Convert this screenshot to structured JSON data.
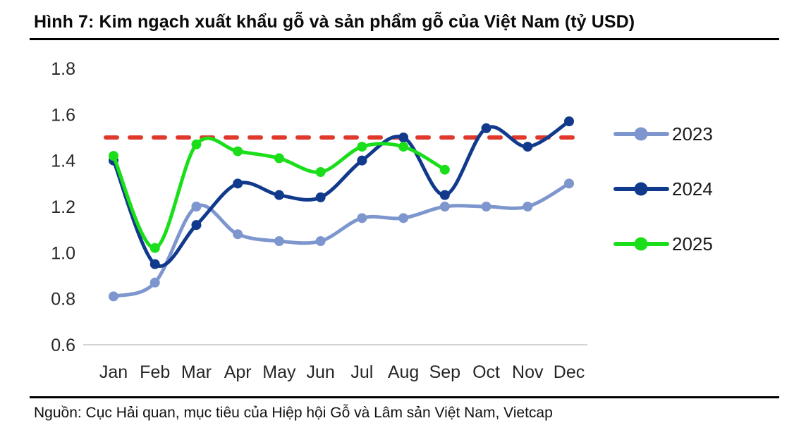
{
  "header": {
    "title": "Hình 7: Kim ngạch xuất khẩu gỗ và sản phẩm gỗ của Việt Nam (tỷ USD)"
  },
  "footer": {
    "source": "Nguồn: Cục Hải quan, mục tiêu của Hiệp hội Gỗ và Lâm sản Việt Nam, Vietcap"
  },
  "chart_data": {
    "type": "line",
    "title": "Kim ngạch xuất khẩu gỗ và sản phẩm gỗ của Việt Nam",
    "unit": "tỷ USD",
    "categories": [
      "Jan",
      "Feb",
      "Mar",
      "Apr",
      "May",
      "Jun",
      "Jul",
      "Aug",
      "Sep",
      "Oct",
      "Nov",
      "Dec"
    ],
    "series": [
      {
        "name": "2023",
        "color": "#7E96CE",
        "values": [
          0.81,
          0.87,
          1.2,
          1.08,
          1.05,
          1.05,
          1.15,
          1.15,
          1.2,
          1.2,
          1.2,
          1.3
        ]
      },
      {
        "name": "2024",
        "color": "#113A8C",
        "values": [
          1.4,
          0.95,
          1.12,
          1.3,
          1.25,
          1.24,
          1.4,
          1.5,
          1.25,
          1.54,
          1.46,
          1.57
        ]
      },
      {
        "name": "2025",
        "color": "#1BDE1B",
        "values": [
          1.42,
          1.02,
          1.47,
          1.44,
          1.41,
          1.35,
          1.46,
          1.46,
          1.36
        ]
      }
    ],
    "target_line": {
      "value": 1.5,
      "color": "#E0392B",
      "style": "dashed",
      "label": ""
    },
    "ylim": [
      0.6,
      1.8
    ],
    "yticks": [
      "1.8",
      "1.6",
      "1.4",
      "1.2",
      "1.0",
      "0.8",
      "0.6"
    ],
    "xlabel": "",
    "ylabel": "",
    "grid": false,
    "legend_position": "right",
    "baseline_color": "#D4D4D4"
  }
}
